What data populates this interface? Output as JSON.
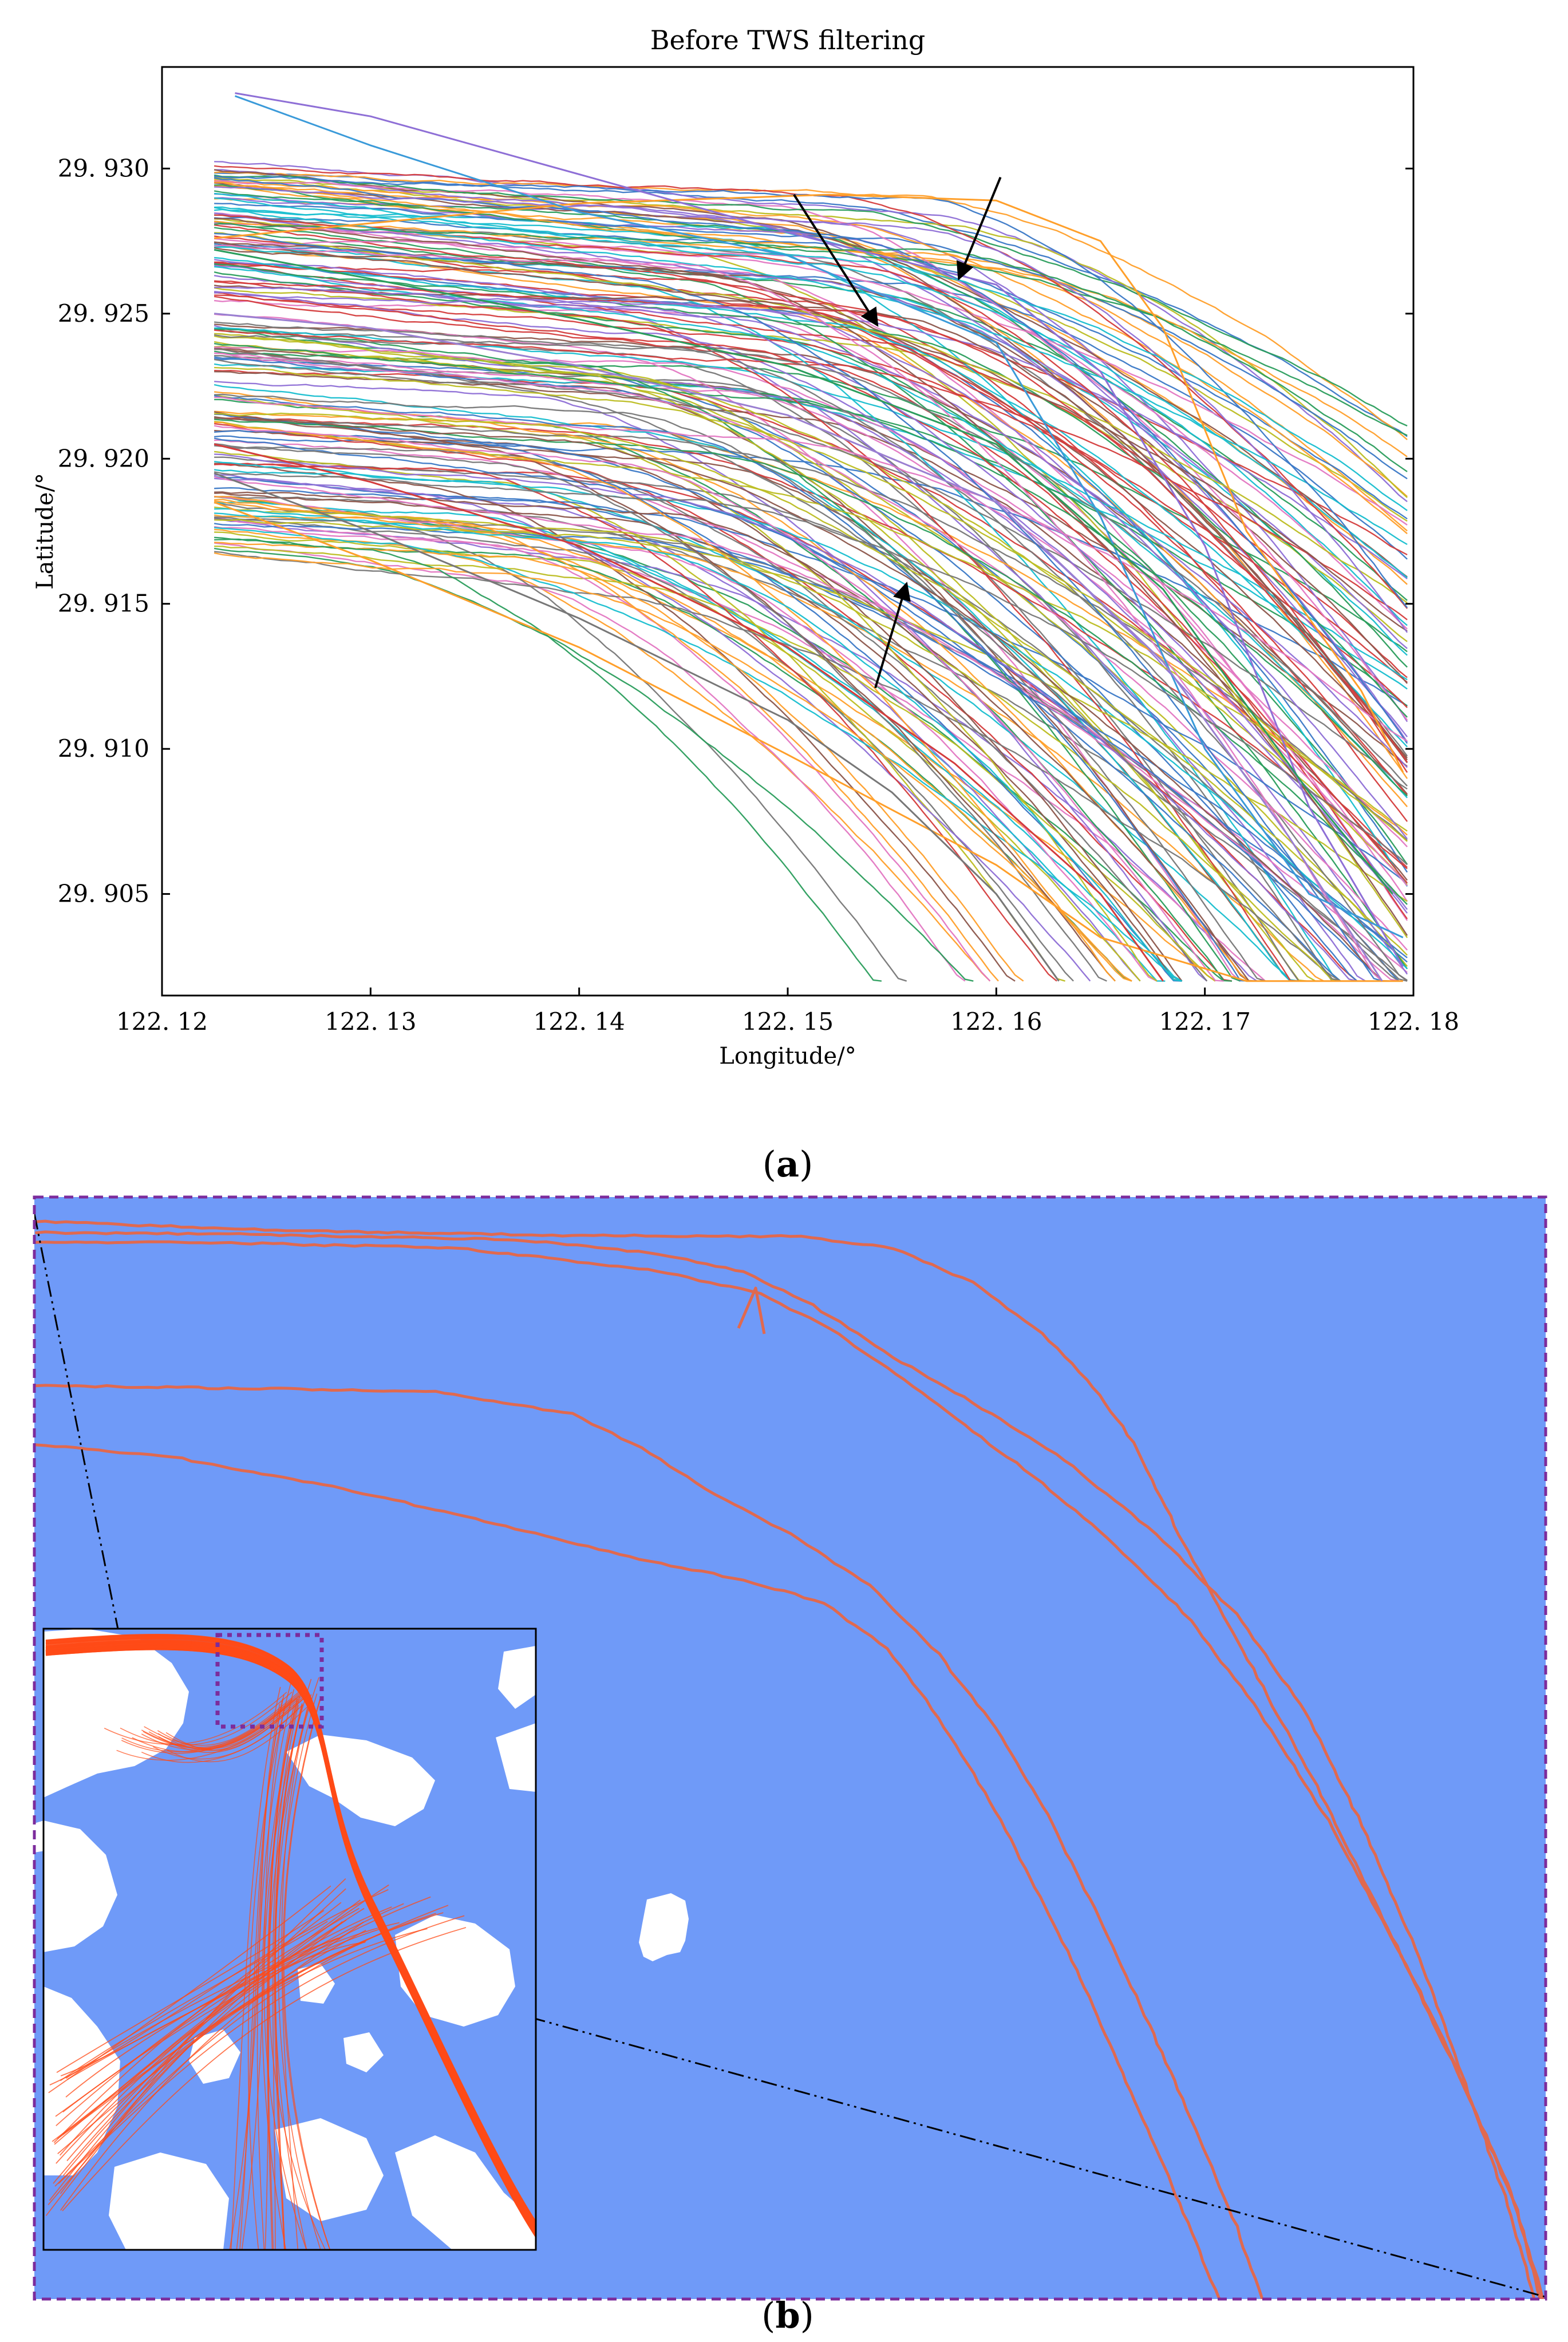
{
  "chart_data": [
    {
      "panel_label": "(a)",
      "type": "line",
      "title": "Before TWS filtering",
      "xlabel": "Longitude/°",
      "ylabel": "Latitude/°",
      "xlim": [
        122.12,
        122.18
      ],
      "ylim": [
        29.9015,
        29.9335
      ],
      "xticks": [
        122.12,
        122.13,
        122.14,
        122.15,
        122.16,
        122.17,
        122.18
      ],
      "xtick_labels": [
        "122. 12",
        "122. 13",
        "122. 14",
        "122. 15",
        "122. 16",
        "122. 17",
        "122. 18"
      ],
      "yticks": [
        29.905,
        29.91,
        29.915,
        29.92,
        29.925,
        29.93
      ],
      "ytick_labels": [
        "29. 905",
        "29. 910",
        "29. 915",
        "29. 920",
        "29. 925",
        "29. 930"
      ],
      "grid": false,
      "legend": "none",
      "series_count_approx": 180,
      "series": [
        {
          "color": "#ff9f2a",
          "x": [
            122.1225,
            122.14,
            122.152,
            122.16,
            122.165,
            122.168,
            122.172,
            122.1775,
            122.1795
          ],
          "y": [
            29.9276,
            29.9288,
            29.9291,
            29.9289,
            29.9275,
            29.9245,
            29.9175,
            29.912,
            29.9092
          ]
        },
        {
          "color": "#8e6fd6",
          "x": [
            122.1235,
            122.13,
            122.14,
            122.15,
            122.16,
            122.165,
            122.17,
            122.175,
            122.1795
          ],
          "y": [
            29.9326,
            29.9318,
            29.9298,
            29.9278,
            29.926,
            29.923,
            29.917,
            29.908,
            29.9025
          ]
        },
        {
          "color": "#3a9ad9",
          "x": [
            122.1235,
            122.13,
            122.14,
            122.15,
            122.16,
            122.165,
            122.17,
            122.175,
            122.1795
          ],
          "y": [
            29.9325,
            29.9308,
            29.9285,
            29.927,
            29.924,
            29.918,
            29.91,
            29.905,
            29.9035
          ]
        },
        {
          "color": "#ff9f2a",
          "x": [
            122.1225,
            122.13,
            122.14,
            122.15,
            122.16,
            122.165,
            122.172,
            122.1795
          ],
          "y": [
            29.9185,
            29.9165,
            29.9135,
            29.9098,
            29.906,
            29.9035,
            29.902,
            29.902
          ]
        },
        {
          "color": "#777777",
          "x": [
            122.1225,
            122.13,
            122.14,
            122.15,
            122.155,
            122.16,
            122.163
          ],
          "y": [
            29.9195,
            29.9175,
            29.9145,
            29.911,
            29.9085,
            29.905,
            29.902
          ]
        },
        {
          "color": "#2a9d5c",
          "x": [
            122.1225,
            122.13,
            122.14,
            122.15,
            122.16,
            122.168,
            122.175,
            122.179
          ],
          "y": [
            29.9272,
            29.9262,
            29.9248,
            29.9232,
            29.9205,
            29.9155,
            29.9085,
            29.905
          ]
        },
        {
          "color": "#d43c3c",
          "x": [
            122.1225,
            122.13,
            122.14,
            122.15,
            122.158,
            122.165,
            122.168
          ],
          "y": [
            29.9205,
            29.9192,
            29.917,
            29.9135,
            29.9095,
            29.905,
            29.902
          ]
        },
        {
          "color": "#9a7fd1",
          "x": [
            122.1225,
            122.13,
            122.14,
            122.15,
            122.16,
            122.168,
            122.174,
            122.1785
          ],
          "y": [
            29.925,
            29.9245,
            29.9232,
            29.9215,
            29.9185,
            29.913,
            29.907,
            29.902
          ]
        }
      ],
      "annotations": [
        {
          "type": "arrow",
          "from": [
            122.1602,
            29.9297
          ],
          "to": [
            122.1582,
            29.9262
          ]
        },
        {
          "type": "arrow",
          "from": [
            122.1503,
            29.9291
          ],
          "to": [
            122.1543,
            29.9246
          ]
        },
        {
          "type": "arrow",
          "from": [
            122.1542,
            29.9121
          ],
          "to": [
            122.1557,
            29.9157
          ]
        }
      ]
    },
    {
      "panel_label": "(b)",
      "type": "map",
      "water_color": "#6f9af8",
      "land_color": "#ffffff",
      "track_color": "#e0694f",
      "inset_track_color": "#ff4a16",
      "frame_color": "#7c2c9c",
      "guide_line_color": "#000000"
    }
  ],
  "captions": {
    "a": "(a)",
    "b": "(b)"
  },
  "legend": {
    "a_label": "a",
    "b_label": "b"
  }
}
